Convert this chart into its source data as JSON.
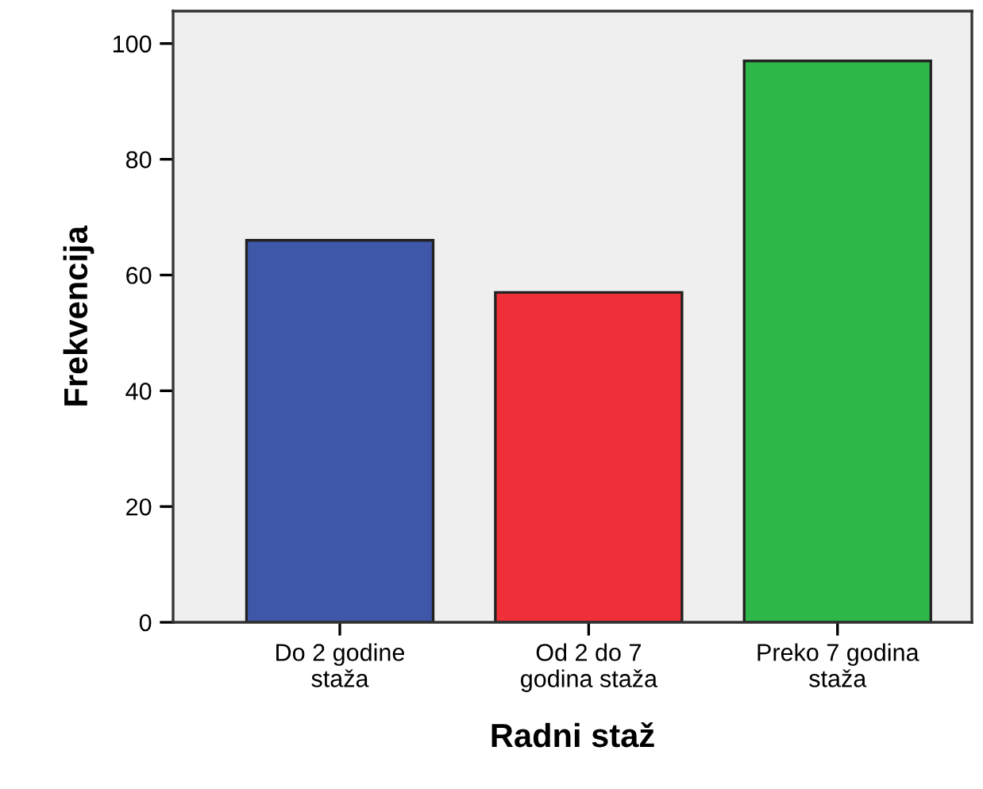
{
  "chart_data": {
    "type": "bar",
    "xlabel": "Radni staž",
    "ylabel": "Frekvencija",
    "categories": [
      "Do 2 godine\nstaža",
      "Od 2 do 7\ngodina staža",
      "Preko 7 godina\nstaža"
    ],
    "values": [
      66,
      57,
      97
    ],
    "colors": [
      "#3f57a8",
      "#ef3038",
      "#2eb84a"
    ],
    "ylim": [
      0,
      105.6
    ],
    "yticks": [
      0,
      20,
      40,
      60,
      80,
      100
    ],
    "grid": false,
    "legend": false
  }
}
